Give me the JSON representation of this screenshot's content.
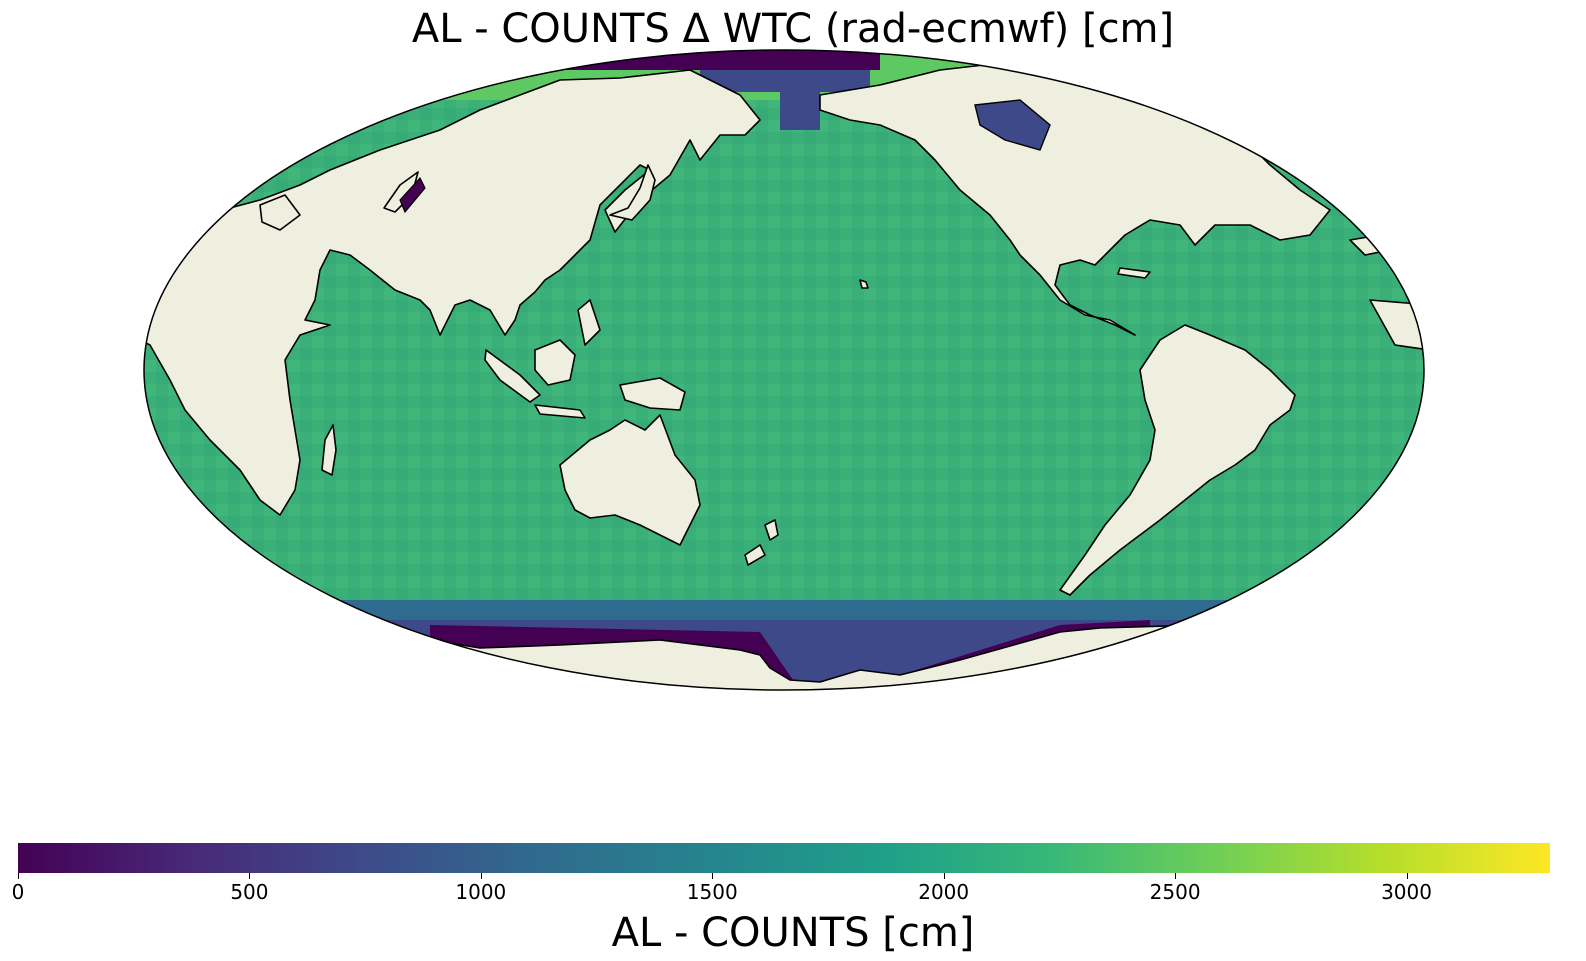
{
  "title": "AL - COUNTS Δ WTC (rad-ecmwf) [cm]",
  "projection": "mollweide",
  "colormap": {
    "name": "viridis",
    "stops": [
      "#440154",
      "#482878",
      "#3e4989",
      "#31688e",
      "#26828e",
      "#1f9e89",
      "#35b779",
      "#6ece58",
      "#b5de2b",
      "#fde725"
    ]
  },
  "colors": {
    "land": "#efefdf",
    "ocean_typical": "#3aaf78",
    "ocean_alt": "#44b87a",
    "polar_low": "#440154",
    "polar_mid": "#3e4989",
    "arctic_green": "#5ec962",
    "coast": "#000000"
  },
  "colorbar": {
    "label": "AL - COUNTS [cm]",
    "min": 0,
    "max": 3310,
    "ticks": [
      "0",
      "500",
      "1000",
      "1500",
      "2000",
      "2500",
      "3000"
    ],
    "tick_values": [
      0,
      500,
      1000,
      1500,
      2000,
      2500,
      3000
    ]
  }
}
